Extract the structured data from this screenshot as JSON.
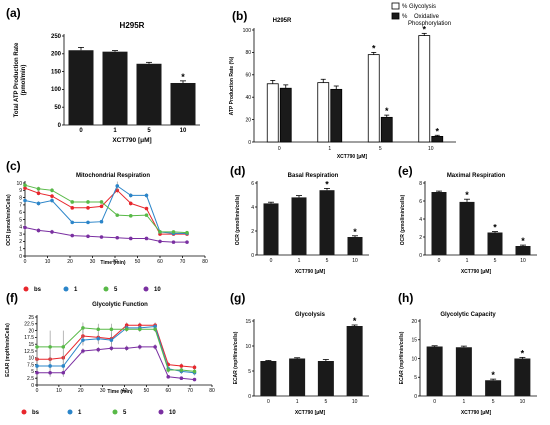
{
  "panel_labels": [
    "(a)",
    "(b)",
    "(c)",
    "(d)",
    "(e)",
    "(f)",
    "(g)",
    "(h)"
  ],
  "chart_data": [
    {
      "id": "a",
      "type": "bar",
      "title": "H295R",
      "ylabel_lines": [
        "Total ATP Production Rate",
        "(pmol/min)"
      ],
      "xlabel": "XCT790 [μM]",
      "categories": [
        "0",
        "1",
        "5",
        "10"
      ],
      "values": [
        210,
        206,
        172,
        118
      ],
      "errors": [
        8,
        3,
        4,
        6
      ],
      "significant": [
        false,
        false,
        false,
        true
      ],
      "ylim": [
        0,
        250
      ],
      "yticks": [
        0,
        50,
        100,
        150,
        200,
        250
      ],
      "bar_color": "#1a1a1a"
    },
    {
      "id": "b",
      "type": "bar",
      "title": "H295R",
      "ylabel": "ATP Production Rate (%)",
      "xlabel": "XCT790 [μM]",
      "categories": [
        "0",
        "1",
        "5",
        "10"
      ],
      "series": [
        {
          "name": "% Glycolysis",
          "values": [
            52,
            53,
            78,
            95
          ],
          "errors": [
            3,
            3,
            2,
            2
          ],
          "significant": [
            false,
            false,
            true,
            true
          ],
          "color": "#ffffff"
        },
        {
          "name": "% Oxidative Phosphorylation",
          "values": [
            48,
            47,
            22,
            5
          ],
          "errors": [
            3,
            3,
            2,
            1
          ],
          "significant": [
            false,
            false,
            true,
            true
          ],
          "color": "#1a1a1a"
        }
      ],
      "ylim": [
        0,
        100
      ],
      "yticks": [
        0,
        20,
        40,
        60,
        80,
        100
      ]
    },
    {
      "id": "c",
      "type": "line",
      "title": "Mitochondrial Respiration",
      "ylabel": "OCR (pmol/min/Cells)",
      "xlabel": "Time (min)",
      "x": [
        0,
        6,
        12,
        21,
        28,
        34,
        41,
        47,
        54,
        60,
        66,
        72
      ],
      "xlim": [
        0,
        80
      ],
      "xticks": [
        0,
        10,
        20,
        30,
        40,
        50,
        60,
        70,
        80
      ],
      "ylim": [
        0,
        10
      ],
      "yticks": [
        0,
        1,
        2,
        3,
        4,
        5,
        6,
        7,
        8,
        9,
        10
      ],
      "series": [
        {
          "name": "bs",
          "color": "#e8262c",
          "values": [
            9.3,
            8.6,
            8.2,
            6.6,
            6.6,
            6.8,
            9.0,
            7.2,
            6.5,
            3.0,
            3.0,
            3.0
          ],
          "errors": [
            0.3,
            0.3,
            0.3,
            0.2,
            0.2,
            0.2,
            0.4,
            0.3,
            0.2,
            0.1,
            0.1,
            0.1
          ]
        },
        {
          "name": "1",
          "color": "#2b85c9",
          "values": [
            7.6,
            7.2,
            7.6,
            4.6,
            4.6,
            4.7,
            9.6,
            8.3,
            8.3,
            3.3,
            3.1,
            3.1
          ],
          "errors": [
            0.3,
            0.3,
            0.3,
            0.2,
            0.2,
            0.2,
            0.6,
            0.3,
            0.3,
            0.1,
            0.1,
            0.1
          ]
        },
        {
          "name": "5",
          "color": "#58b947",
          "values": [
            9.7,
            9.2,
            9.0,
            7.4,
            7.4,
            7.4,
            5.6,
            5.5,
            5.6,
            3.3,
            3.3,
            3.2
          ],
          "errors": [
            0.3,
            0.3,
            0.3,
            0.2,
            0.2,
            0.2,
            0.2,
            0.2,
            0.2,
            0.1,
            0.1,
            0.1
          ]
        },
        {
          "name": "10",
          "color": "#7a2fa1",
          "values": [
            3.9,
            3.5,
            3.3,
            2.8,
            2.7,
            2.6,
            2.5,
            2.4,
            2.4,
            2.0,
            1.9,
            1.9
          ],
          "errors": [
            0.4,
            0.3,
            0.3,
            0.2,
            0.2,
            0.2,
            0.2,
            0.2,
            0.2,
            0.1,
            0.1,
            0.1
          ]
        }
      ]
    },
    {
      "id": "d",
      "type": "bar",
      "title": "Basal Respiration",
      "ylabel": "OCR (pmol/min/cells)",
      "xlabel": "XCT790 [μM]",
      "categories": [
        "0",
        "1",
        "5",
        "10"
      ],
      "values": [
        4.3,
        4.8,
        5.4,
        1.5
      ],
      "errors": [
        0.1,
        0.15,
        0.15,
        0.1
      ],
      "significant": [
        false,
        false,
        true,
        true
      ],
      "ylim": [
        0,
        6
      ],
      "yticks": [
        0,
        2,
        4,
        6
      ],
      "bar_color": "#1a1a1a"
    },
    {
      "id": "e",
      "type": "bar",
      "title": "Maximal Respiration",
      "ylabel": "OCR (pmol/min/cells)",
      "xlabel": "XCT790 [μM]",
      "categories": [
        "0",
        "1",
        "5",
        "10"
      ],
      "values": [
        7.0,
        5.9,
        2.5,
        1.0
      ],
      "errors": [
        0.1,
        0.3,
        0.1,
        0.1
      ],
      "significant": [
        false,
        true,
        true,
        true
      ],
      "ylim": [
        0,
        8
      ],
      "yticks": [
        0,
        2,
        4,
        6,
        8
      ],
      "bar_color": "#1a1a1a"
    },
    {
      "id": "f",
      "type": "line",
      "title": "Glycolytic Function",
      "ylabel": "ECAR (mpH/min/Cells)",
      "xlabel": "Time (min)",
      "x": [
        0,
        6,
        12,
        21,
        28,
        34,
        41,
        47,
        54,
        60,
        66,
        72
      ],
      "xlim": [
        0,
        80
      ],
      "xticks": [
        0,
        10,
        20,
        30,
        40,
        50,
        60,
        70,
        80
      ],
      "ylim": [
        0,
        25
      ],
      "yticks": [
        0,
        2.5,
        5.0,
        7.5,
        10.0,
        12.5,
        15.0,
        17.5,
        20.0,
        22.5,
        25.0
      ],
      "series": [
        {
          "name": "bs",
          "color": "#e8262c",
          "values": [
            9.5,
            9.5,
            10.0,
            18.0,
            17.5,
            17.0,
            22.0,
            22.0,
            22.0,
            7.5,
            7.0,
            6.5
          ],
          "errors": [
            5,
            5,
            5,
            3,
            2,
            2,
            1,
            1,
            1,
            1,
            1,
            1
          ]
        },
        {
          "name": "1",
          "color": "#2b85c9",
          "values": [
            7.0,
            7.0,
            7.0,
            16.5,
            17.0,
            16.5,
            21.0,
            21.0,
            21.5,
            6.0,
            5.0,
            4.5
          ],
          "errors": [
            4,
            4,
            4,
            2,
            2,
            2,
            1,
            1,
            1,
            1,
            1,
            1
          ]
        },
        {
          "name": "5",
          "color": "#58b947",
          "values": [
            14.0,
            14.0,
            14.0,
            21.0,
            20.5,
            20.5,
            20.5,
            20.5,
            20.5,
            5.5,
            5.5,
            5.0
          ],
          "errors": [
            6,
            6,
            6,
            2,
            2,
            2,
            1,
            1,
            1,
            1,
            1,
            1
          ]
        },
        {
          "name": "10",
          "color": "#7a2fa1",
          "values": [
            4.5,
            4.5,
            4.5,
            12.5,
            13.0,
            13.5,
            13.5,
            14.0,
            14.0,
            3.0,
            2.5,
            2.0
          ],
          "errors": [
            1,
            1,
            1,
            1,
            1,
            1,
            1,
            1,
            1,
            0.5,
            0.5,
            0.5
          ]
        }
      ]
    },
    {
      "id": "g",
      "type": "bar",
      "title": "Glycolysis",
      "ylabel": "ECAR (mpH/min/cells)",
      "xlabel": "XCT790 [μM]",
      "categories": [
        "0",
        "1",
        "5",
        "10"
      ],
      "values": [
        7.0,
        7.5,
        7.0,
        14.0
      ],
      "errors": [
        0.1,
        0.15,
        0.3,
        0.2
      ],
      "significant": [
        false,
        false,
        false,
        true
      ],
      "ylim": [
        0,
        15
      ],
      "yticks": [
        0,
        5,
        10,
        15
      ],
      "bar_color": "#1a1a1a"
    },
    {
      "id": "h",
      "type": "bar",
      "title": "Glycolytic Capacity",
      "ylabel": "ECAR (mpH/min/cells)",
      "xlabel": "XCT790 [μM]",
      "categories": [
        "0",
        "1",
        "5",
        "10"
      ],
      "values": [
        13.2,
        13.0,
        4.2,
        10.0
      ],
      "errors": [
        0.2,
        0.3,
        0.3,
        0.3
      ],
      "significant": [
        false,
        false,
        true,
        true
      ],
      "ylim": [
        0,
        20
      ],
      "yticks": [
        0,
        5,
        10,
        15,
        20
      ],
      "bar_color": "#1a1a1a"
    }
  ]
}
